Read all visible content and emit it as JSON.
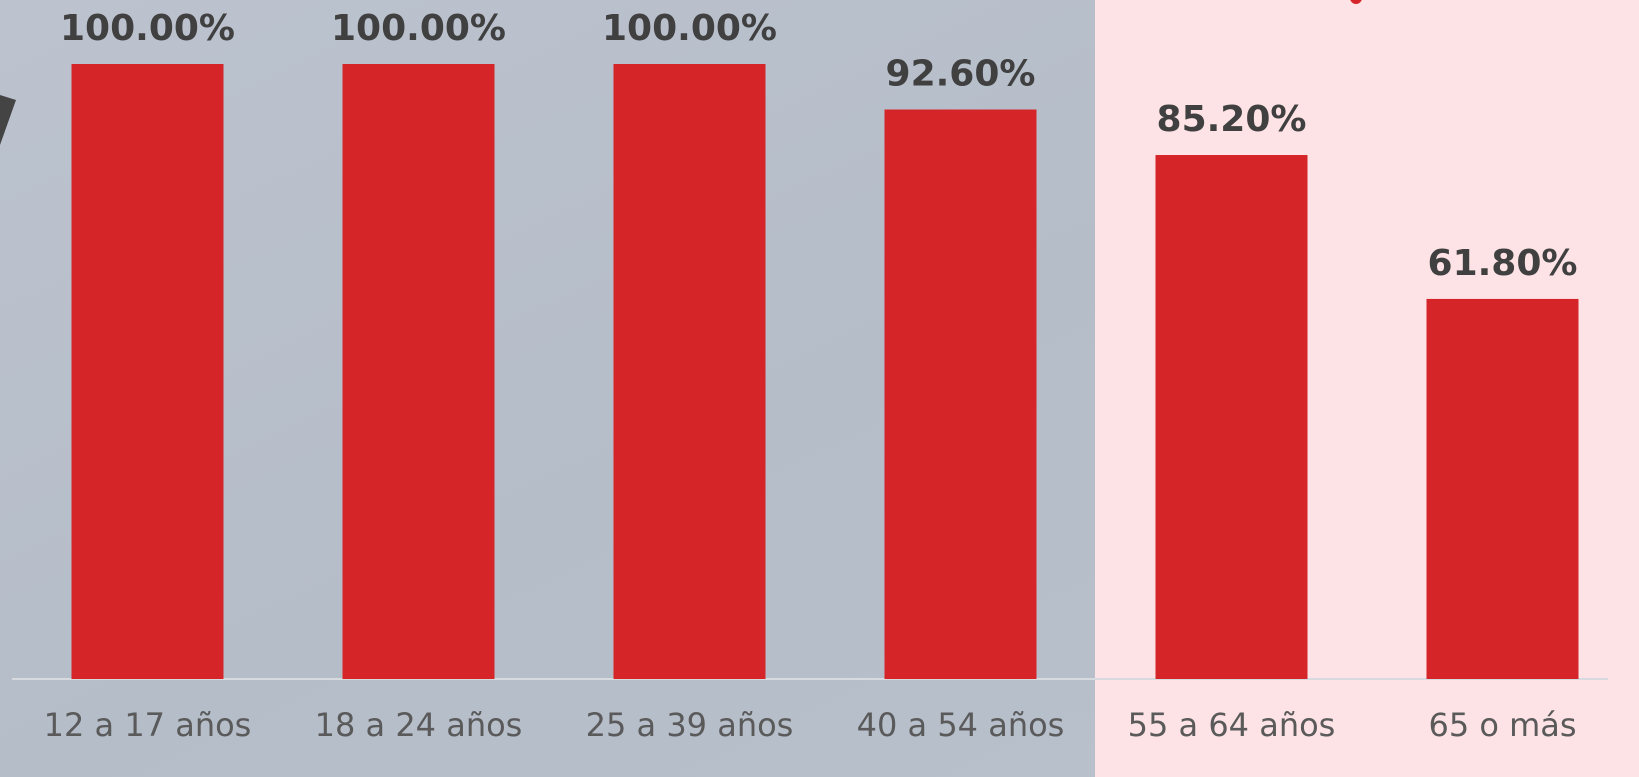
{
  "chart_data": {
    "type": "bar",
    "categories": [
      "12 a 17 años",
      "18 a 24 años",
      "25 a 39 años",
      "40 a 54 años",
      "55 a 64 años",
      "65 o más"
    ],
    "values": [
      100,
      100,
      100,
      92.6,
      85.2,
      61.8
    ],
    "value_labels": [
      "100.00%",
      "100.00%",
      "100.00%",
      "92.60%",
      "85.20%",
      "61.80%"
    ],
    "color": "#d52528"
  }
}
